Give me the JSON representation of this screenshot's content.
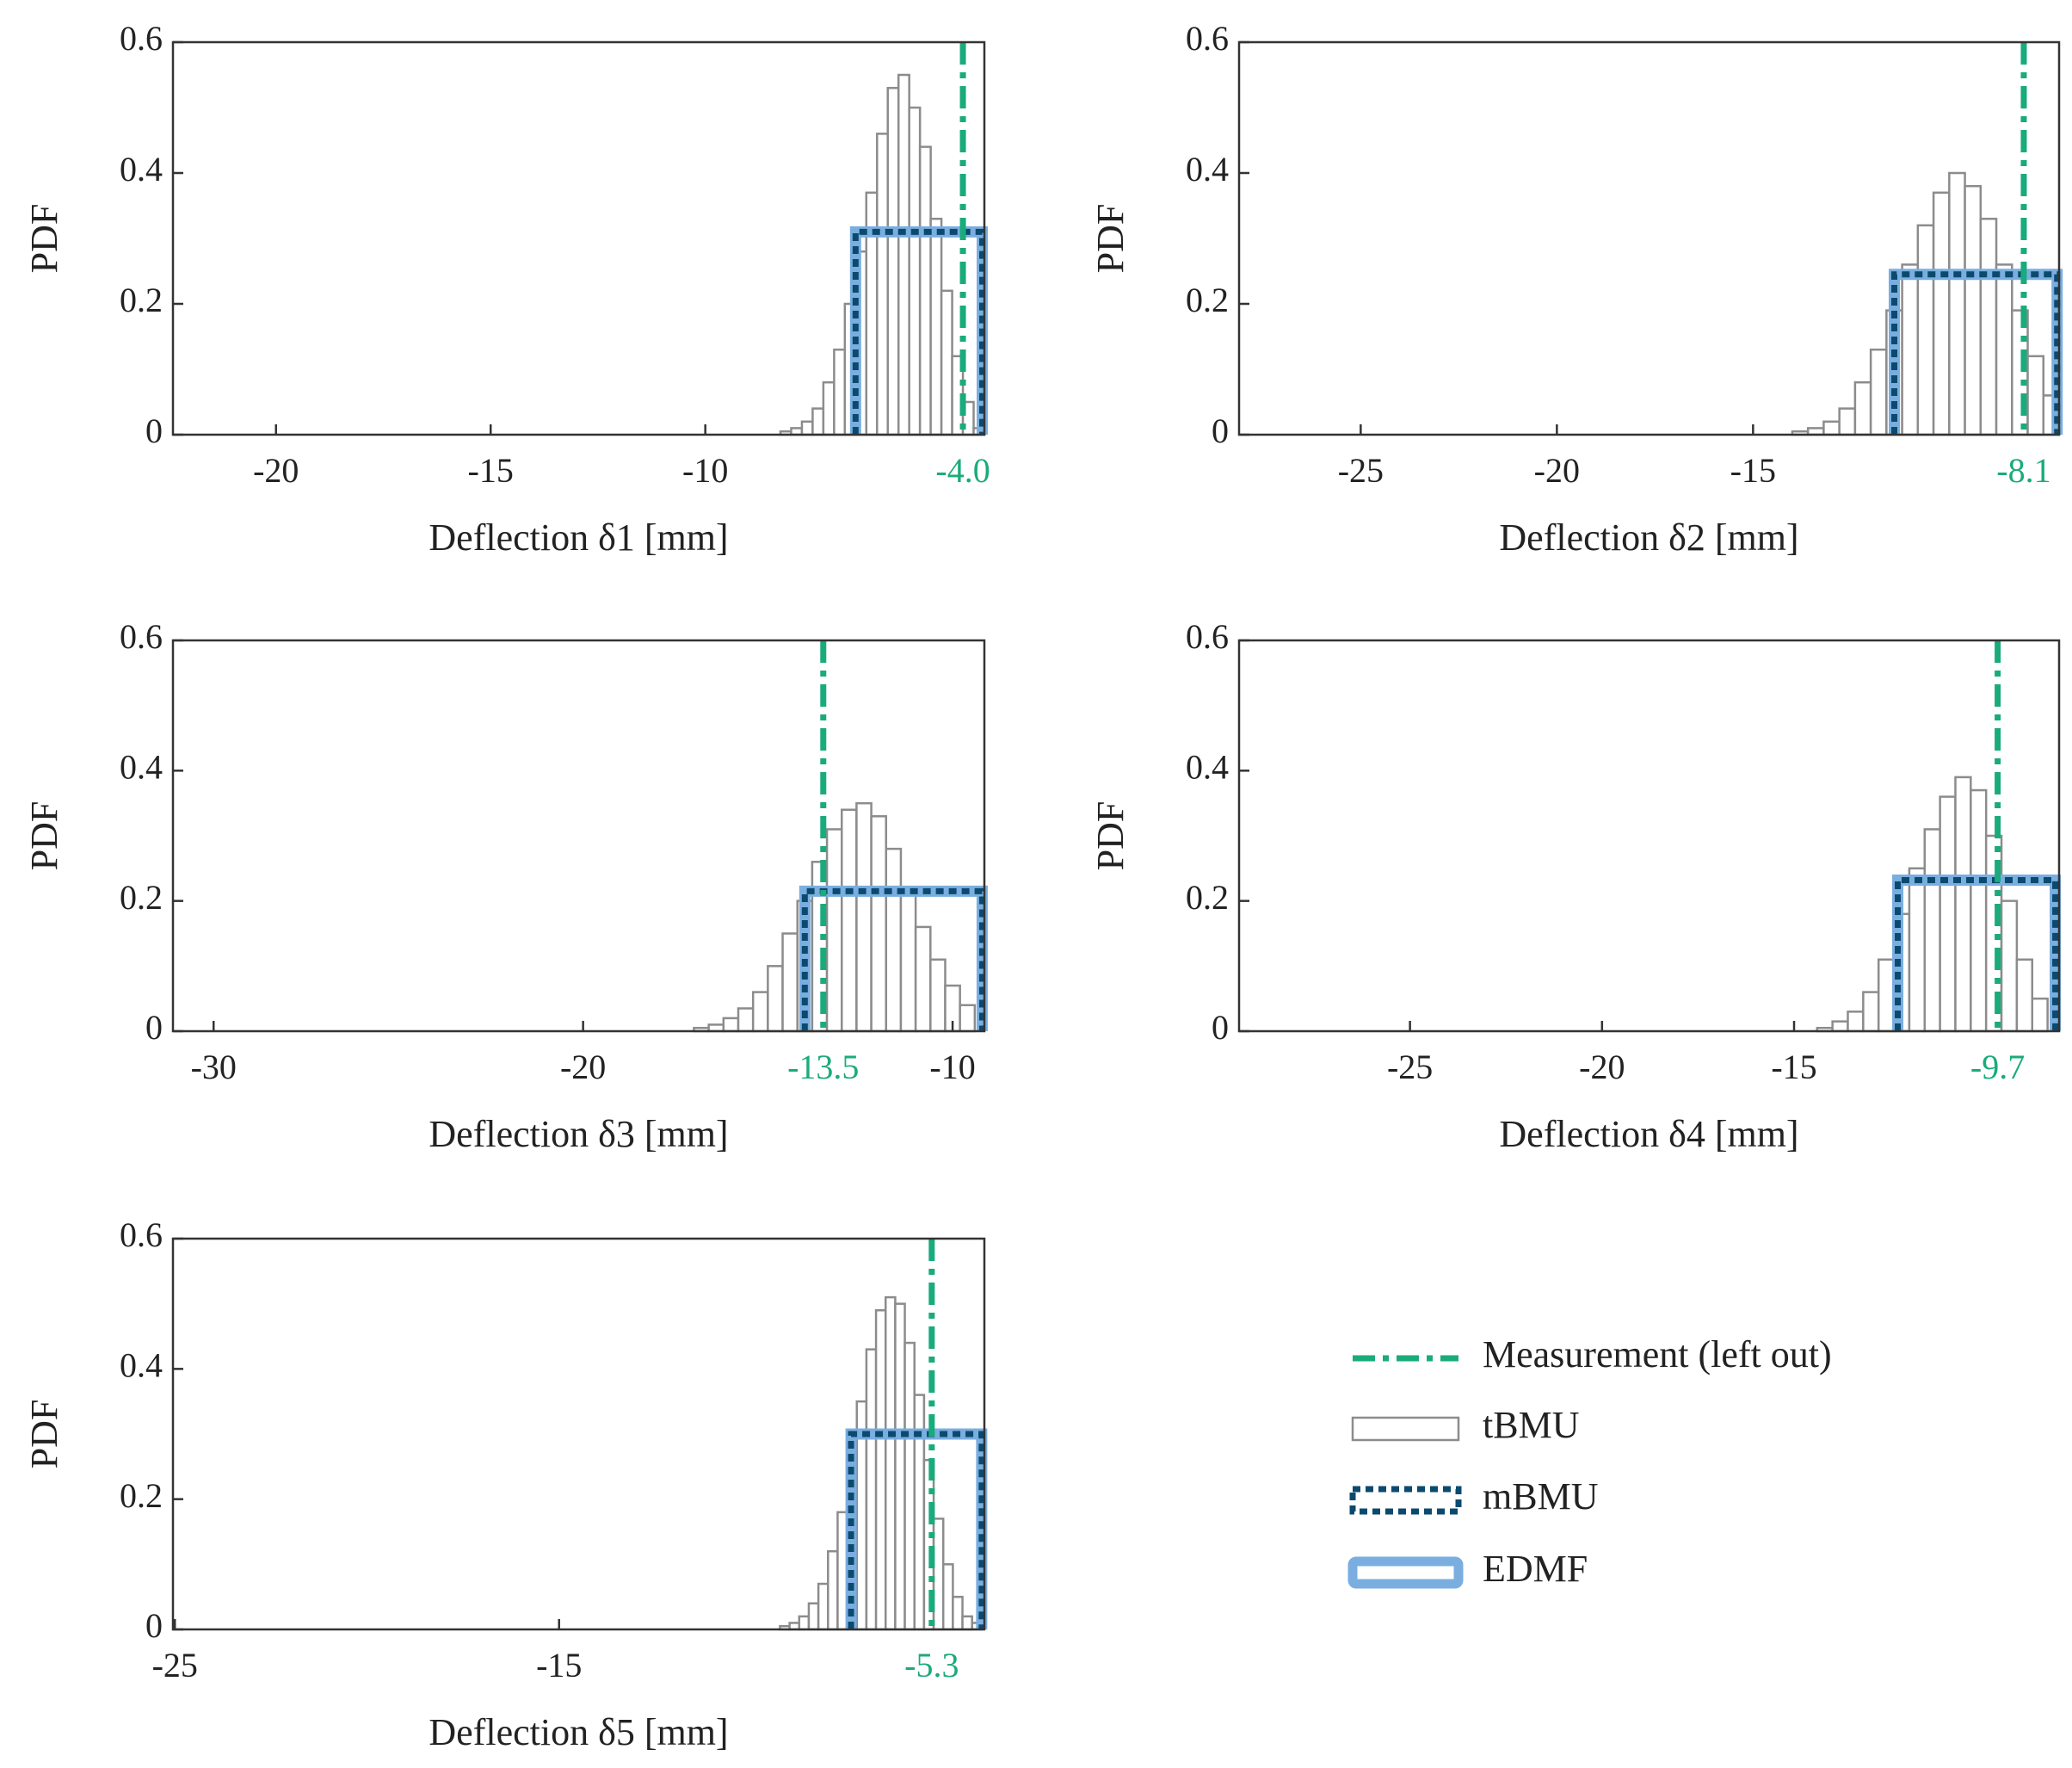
{
  "legend": [
    {
      "name": "Measurement (left out)",
      "color": "#1aab7c"
    },
    {
      "name": "tBMU",
      "color": "#8c8c8c"
    },
    {
      "name": "mBMU",
      "color": "#0b4a6e"
    },
    {
      "name": "EDMF",
      "color": "#7aaee0"
    }
  ],
  "chart_data": [
    {
      "type": "histogram",
      "xlabel": "Deflection δ1 [mm]",
      "ylabel": "PDF",
      "xlim": [
        -22.4,
        -3.5
      ],
      "ylim": [
        0,
        0.6
      ],
      "xticks": [
        -20,
        -15,
        -10
      ],
      "yticks": [
        0,
        0.2,
        0.4,
        0.6
      ],
      "bins": [
        -8.25,
        -8.0,
        -7.75,
        -7.5,
        -7.25,
        -7.0,
        -6.75,
        -6.5,
        -6.25,
        -6.0,
        -5.75,
        -5.5,
        -5.25,
        -5.0,
        -4.75,
        -4.5,
        -4.25,
        -4.0,
        -3.75,
        -3.5
      ],
      "values": [
        0.005,
        0.01,
        0.02,
        0.04,
        0.08,
        0.13,
        0.2,
        0.28,
        0.37,
        0.46,
        0.53,
        0.55,
        0.5,
        0.44,
        0.33,
        0.22,
        0.12,
        0.05,
        0.01
      ],
      "measurement": {
        "value": -4.0,
        "label": "-4.0"
      },
      "mbmu": {
        "range": [
          -6.5,
          -3.55
        ],
        "value": 0.31
      },
      "edmf": {
        "range": [
          -6.5,
          -3.55
        ],
        "value": 0.31
      }
    },
    {
      "type": "histogram",
      "xlabel": "Deflection δ2 [mm]",
      "ylabel": "PDF",
      "xlim": [
        -28.1,
        -7.2
      ],
      "ylim": [
        0,
        0.6
      ],
      "xticks": [
        -25,
        -20,
        -15
      ],
      "yticks": [
        0,
        0.2,
        0.4,
        0.6
      ],
      "bins": [
        -14.0,
        -13.6,
        -13.2,
        -12.8,
        -12.4,
        -12.0,
        -11.6,
        -11.2,
        -10.8,
        -10.4,
        -10.0,
        -9.6,
        -9.2,
        -8.8,
        -8.4,
        -8.0,
        -7.6,
        -7.2
      ],
      "values": [
        0.005,
        0.01,
        0.02,
        0.04,
        0.08,
        0.13,
        0.19,
        0.26,
        0.32,
        0.37,
        0.4,
        0.38,
        0.33,
        0.26,
        0.19,
        0.12,
        0.06
      ],
      "measurement": {
        "value": -8.1,
        "label": "-8.1"
      },
      "mbmu": {
        "range": [
          -11.4,
          -7.25
        ],
        "value": 0.245
      },
      "edmf": {
        "range": [
          -11.4,
          -7.25
        ],
        "value": 0.245
      }
    },
    {
      "type": "histogram",
      "xlabel": "Deflection δ3 [mm]",
      "ylabel": "PDF",
      "xlim": [
        -31.1,
        -9.14
      ],
      "ylim": [
        0,
        0.6
      ],
      "xticks": [
        -30,
        -20,
        -10
      ],
      "yticks": [
        0,
        0.2,
        0.4,
        0.6
      ],
      "bins": [
        -17.0,
        -16.6,
        -16.2,
        -15.8,
        -15.4,
        -15.0,
        -14.6,
        -14.2,
        -13.8,
        -13.4,
        -13.0,
        -12.6,
        -12.2,
        -11.8,
        -11.4,
        -11.0,
        -10.6,
        -10.2,
        -9.8,
        -9.4
      ],
      "values": [
        0.005,
        0.01,
        0.02,
        0.035,
        0.06,
        0.1,
        0.15,
        0.2,
        0.26,
        0.31,
        0.34,
        0.35,
        0.33,
        0.28,
        0.22,
        0.16,
        0.11,
        0.07,
        0.04
      ],
      "measurement": {
        "value": -13.5,
        "label": "-13.5"
      },
      "mbmu": {
        "range": [
          -14.0,
          -9.2
        ],
        "value": 0.215
      },
      "edmf": {
        "range": [
          -14.0,
          -9.2
        ],
        "value": 0.215
      }
    },
    {
      "type": "histogram",
      "xlabel": "Deflection δ4 [mm]",
      "ylabel": "PDF",
      "xlim": [
        -29.45,
        -8.1
      ],
      "ylim": [
        0,
        0.6
      ],
      "xticks": [
        -25,
        -20,
        -15
      ],
      "yticks": [
        0,
        0.2,
        0.4,
        0.6
      ],
      "bins": [
        -14.4,
        -14.0,
        -13.6,
        -13.2,
        -12.8,
        -12.4,
        -12.0,
        -11.6,
        -11.2,
        -10.8,
        -10.4,
        -10.0,
        -9.6,
        -9.2,
        -8.8,
        -8.4
      ],
      "values": [
        0.005,
        0.015,
        0.03,
        0.06,
        0.11,
        0.18,
        0.25,
        0.31,
        0.36,
        0.39,
        0.37,
        0.3,
        0.2,
        0.11,
        0.05
      ],
      "measurement": {
        "value": -9.7,
        "label": "-9.7"
      },
      "mbmu": {
        "range": [
          -12.3,
          -8.2
        ],
        "value": 0.232
      },
      "edmf": {
        "range": [
          -12.3,
          -8.2
        ],
        "value": 0.232
      }
    },
    {
      "type": "histogram",
      "xlabel": "Deflection δ5 [mm]",
      "ylabel": "PDF",
      "xlim": [
        -25.05,
        -3.93
      ],
      "ylim": [
        0,
        0.6
      ],
      "xticks": [
        -25,
        -15
      ],
      "yticks": [
        0,
        0.2,
        0.4,
        0.6
      ],
      "bins": [
        -9.25,
        -9.0,
        -8.75,
        -8.5,
        -8.25,
        -8.0,
        -7.75,
        -7.5,
        -7.25,
        -7.0,
        -6.75,
        -6.5,
        -6.25,
        -6.0,
        -5.75,
        -5.5,
        -5.25,
        -5.0,
        -4.75,
        -4.5,
        -4.25,
        -4.0
      ],
      "values": [
        0.005,
        0.01,
        0.02,
        0.04,
        0.07,
        0.12,
        0.18,
        0.26,
        0.35,
        0.43,
        0.49,
        0.51,
        0.5,
        0.44,
        0.36,
        0.26,
        0.17,
        0.1,
        0.05,
        0.02,
        0.01
      ],
      "measurement": {
        "value": -5.3,
        "label": "-5.3"
      },
      "mbmu": {
        "range": [
          -7.4,
          -4.0
        ],
        "value": 0.3
      },
      "edmf": {
        "range": [
          -7.4,
          -4.0
        ],
        "value": 0.3
      }
    }
  ]
}
